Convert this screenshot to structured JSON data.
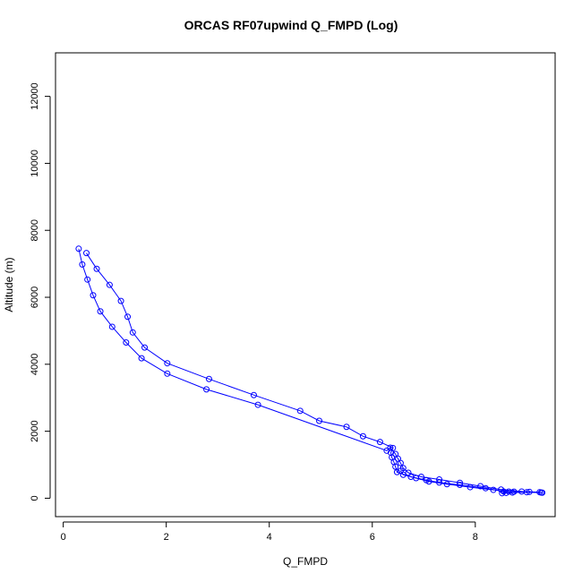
{
  "chart_data": {
    "type": "line",
    "title": "ORCAS RF07upwind Q_FMPD (Log)",
    "xlabel": "Q_FMPD",
    "ylabel": "Altitude (m)",
    "xlim": [
      -0.15,
      9.55
    ],
    "ylim": [
      -550,
      13300
    ],
    "xticks": [
      0,
      2,
      4,
      6,
      8
    ],
    "yticks": [
      0,
      2000,
      4000,
      6000,
      8000,
      10000,
      12000
    ],
    "marker": "open-circle",
    "color": "#0000ff",
    "series": [
      {
        "values": [
          {
            "x": 9.28,
            "y": 170
          },
          {
            "x": 9.05,
            "y": 190
          },
          {
            "x": 8.75,
            "y": 195
          },
          {
            "x": 8.55,
            "y": 200
          },
          {
            "x": 8.2,
            "y": 300
          },
          {
            "x": 7.7,
            "y": 400
          },
          {
            "x": 7.3,
            "y": 470
          },
          {
            "x": 7.05,
            "y": 540
          },
          {
            "x": 6.75,
            "y": 640
          },
          {
            "x": 6.48,
            "y": 780
          },
          {
            "x": 6.45,
            "y": 940
          },
          {
            "x": 6.42,
            "y": 1080
          },
          {
            "x": 6.38,
            "y": 1220
          },
          {
            "x": 6.36,
            "y": 1360
          },
          {
            "x": 6.4,
            "y": 1500
          },
          {
            "x": 6.15,
            "y": 1680
          },
          {
            "x": 5.82,
            "y": 1850
          },
          {
            "x": 5.5,
            "y": 2130
          },
          {
            "x": 4.97,
            "y": 2310
          },
          {
            "x": 4.6,
            "y": 2610
          },
          {
            "x": 3.7,
            "y": 3080
          },
          {
            "x": 2.83,
            "y": 3560
          },
          {
            "x": 2.02,
            "y": 4030
          },
          {
            "x": 1.58,
            "y": 4500
          },
          {
            "x": 1.35,
            "y": 4950
          },
          {
            "x": 1.25,
            "y": 5420
          },
          {
            "x": 1.12,
            "y": 5890
          },
          {
            "x": 0.9,
            "y": 6370
          },
          {
            "x": 0.65,
            "y": 6850
          },
          {
            "x": 0.45,
            "y": 7320
          }
        ]
      },
      {
        "values": [
          {
            "x": 0.3,
            "y": 7450
          },
          {
            "x": 0.37,
            "y": 6980
          },
          {
            "x": 0.47,
            "y": 6530
          },
          {
            "x": 0.58,
            "y": 6060
          },
          {
            "x": 0.72,
            "y": 5580
          },
          {
            "x": 0.95,
            "y": 5120
          },
          {
            "x": 1.22,
            "y": 4650
          },
          {
            "x": 1.52,
            "y": 4180
          },
          {
            "x": 2.02,
            "y": 3720
          },
          {
            "x": 2.78,
            "y": 3250
          },
          {
            "x": 3.78,
            "y": 2790
          },
          {
            "x": 6.28,
            "y": 1420
          },
          {
            "x": 6.35,
            "y": 1510
          },
          {
            "x": 6.45,
            "y": 1320
          },
          {
            "x": 6.5,
            "y": 1180
          },
          {
            "x": 6.55,
            "y": 1050
          },
          {
            "x": 6.6,
            "y": 900
          },
          {
            "x": 6.7,
            "y": 760
          },
          {
            "x": 6.95,
            "y": 640
          },
          {
            "x": 7.3,
            "y": 560
          },
          {
            "x": 7.7,
            "y": 460
          },
          {
            "x": 8.1,
            "y": 360
          },
          {
            "x": 8.5,
            "y": 260
          },
          {
            "x": 8.9,
            "y": 200
          },
          {
            "x": 9.25,
            "y": 180
          }
        ]
      },
      {
        "values": [
          {
            "x": 9.3,
            "y": 165
          },
          {
            "x": 9.0,
            "y": 180
          },
          {
            "x": 8.72,
            "y": 170
          },
          {
            "x": 8.6,
            "y": 160
          },
          {
            "x": 8.52,
            "y": 150
          },
          {
            "x": 8.65,
            "y": 200
          },
          {
            "x": 8.35,
            "y": 250
          },
          {
            "x": 7.9,
            "y": 330
          },
          {
            "x": 7.45,
            "y": 420
          },
          {
            "x": 7.1,
            "y": 500
          },
          {
            "x": 6.85,
            "y": 600
          },
          {
            "x": 6.6,
            "y": 700
          },
          {
            "x": 6.55,
            "y": 820
          }
        ]
      }
    ]
  }
}
